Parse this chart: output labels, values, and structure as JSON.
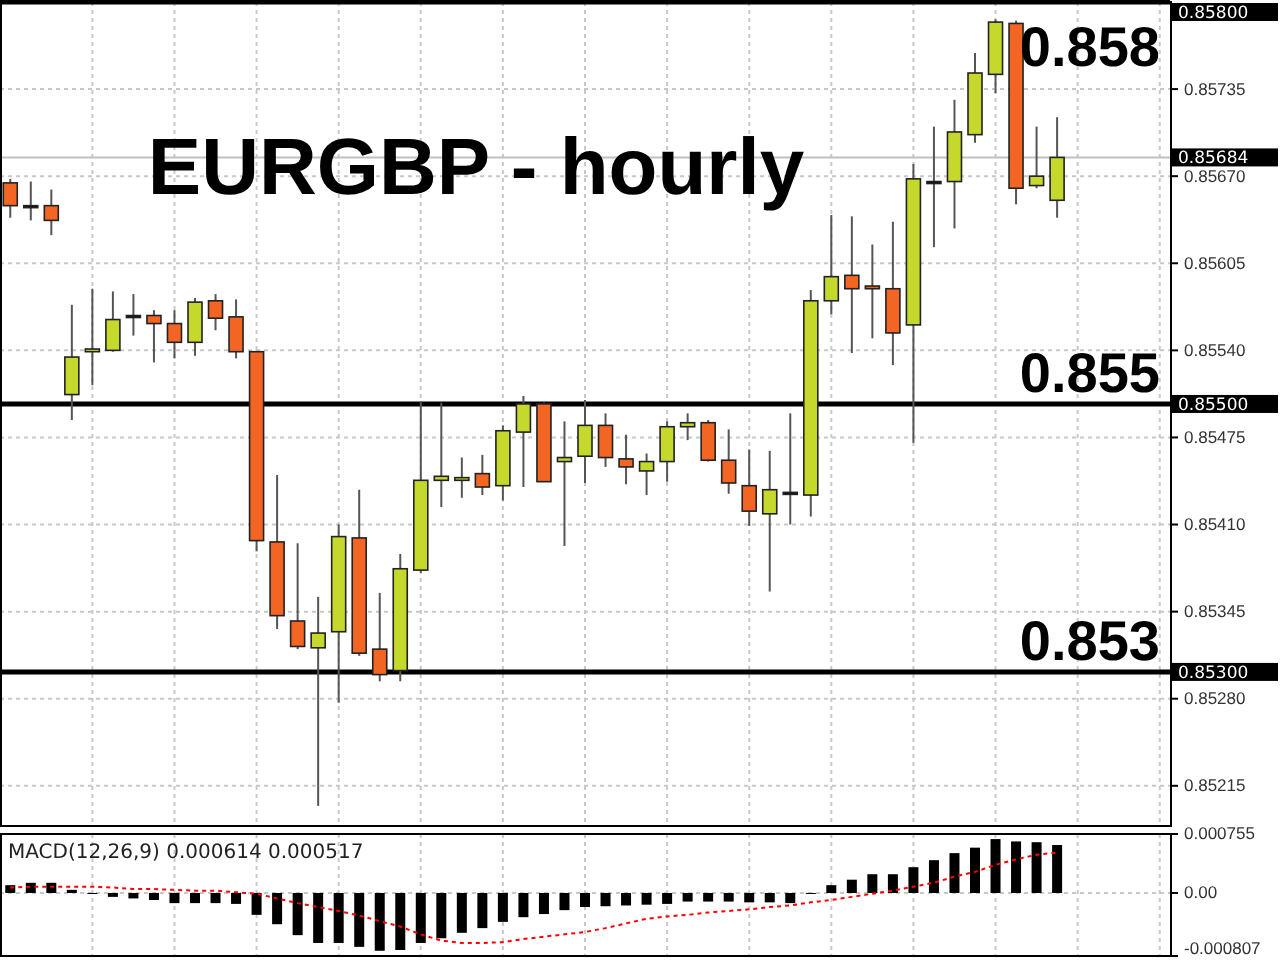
{
  "chart_data": [
    {
      "type": "candlestick",
      "title": "EURGBP - hourly",
      "categories": [
        null,
        null,
        null,
        null,
        null,
        null,
        null,
        null,
        null,
        null,
        null,
        null,
        null,
        null,
        null,
        null,
        null,
        null,
        null,
        null,
        null,
        null,
        null,
        null,
        null,
        null,
        null,
        null,
        null,
        null,
        null,
        null,
        null,
        null,
        null,
        null,
        null,
        null,
        null,
        null,
        null,
        null,
        null,
        null,
        null,
        null,
        null,
        null,
        null,
        null,
        null,
        null,
        null,
        null,
        null,
        null,
        null
      ],
      "ohlc": [
        [
          0.85665,
          0.85668,
          0.85639,
          0.85648
        ],
        [
          0.85648,
          0.85666,
          0.85637,
          0.85648
        ],
        [
          0.85648,
          0.8566,
          0.85626,
          0.85637
        ],
        [
          0.85507,
          0.85574,
          0.85488,
          0.85535
        ],
        [
          0.85539,
          0.85586,
          0.85514,
          0.85541
        ],
        [
          0.8554,
          0.85584,
          0.85539,
          0.85563
        ],
        [
          0.85566,
          0.85582,
          0.85551,
          0.85566
        ],
        [
          0.85566,
          0.8557,
          0.85531,
          0.8556
        ],
        [
          0.8556,
          0.8557,
          0.85534,
          0.85546
        ],
        [
          0.85546,
          0.85579,
          0.85536,
          0.85576
        ],
        [
          0.85577,
          0.85582,
          0.85555,
          0.85564
        ],
        [
          0.85565,
          0.85578,
          0.85534,
          0.85539
        ],
        [
          0.85539,
          0.85539,
          0.8539,
          0.85398
        ],
        [
          0.85397,
          0.85447,
          0.85332,
          0.85342
        ],
        [
          0.85338,
          0.85396,
          0.85317,
          0.85319
        ],
        [
          0.85318,
          0.85356,
          0.852,
          0.85329
        ],
        [
          0.8533,
          0.8541,
          0.85277,
          0.85401
        ],
        [
          0.854,
          0.85436,
          0.85312,
          0.85314
        ],
        [
          0.85317,
          0.85359,
          0.85293,
          0.85298
        ],
        [
          0.85301,
          0.85388,
          0.85293,
          0.85377
        ],
        [
          0.85376,
          0.85502,
          0.85374,
          0.85443
        ],
        [
          0.85443,
          0.85501,
          0.85423,
          0.85446
        ],
        [
          0.85443,
          0.8546,
          0.8543,
          0.85445
        ],
        [
          0.85448,
          0.85462,
          0.85432,
          0.85438
        ],
        [
          0.85439,
          0.85484,
          0.85428,
          0.8548
        ],
        [
          0.85479,
          0.85506,
          0.85438,
          0.855
        ],
        [
          0.855,
          0.85501,
          0.85442,
          0.85442
        ],
        [
          0.85457,
          0.85487,
          0.85394,
          0.8546
        ],
        [
          0.85461,
          0.85503,
          0.85441,
          0.85484
        ],
        [
          0.85484,
          0.85493,
          0.85453,
          0.8546
        ],
        [
          0.85459,
          0.85477,
          0.8544,
          0.85453
        ],
        [
          0.8545,
          0.85463,
          0.85432,
          0.85457
        ],
        [
          0.85457,
          0.85487,
          0.85442,
          0.85483
        ],
        [
          0.85483,
          0.85493,
          0.85473,
          0.85486
        ],
        [
          0.85486,
          0.85488,
          0.85457,
          0.85458
        ],
        [
          0.85458,
          0.85481,
          0.85433,
          0.85441
        ],
        [
          0.85439,
          0.85466,
          0.85409,
          0.8542
        ],
        [
          0.85418,
          0.85465,
          0.8536,
          0.85436
        ],
        [
          0.85434,
          0.85493,
          0.8541,
          0.85434
        ],
        [
          0.85432,
          0.85585,
          0.85416,
          0.85577
        ],
        [
          0.85577,
          0.85641,
          0.85567,
          0.85595
        ],
        [
          0.85596,
          0.8564,
          0.85538,
          0.85586
        ],
        [
          0.85588,
          0.85619,
          0.85549,
          0.85586
        ],
        [
          0.85586,
          0.85636,
          0.85529,
          0.85553
        ],
        [
          0.85559,
          0.85679,
          0.85471,
          0.85668
        ],
        [
          0.85666,
          0.85707,
          0.85617,
          0.85666
        ],
        [
          0.85666,
          0.85727,
          0.85631,
          0.85703
        ],
        [
          0.85701,
          0.85762,
          0.85695,
          0.85747
        ],
        [
          0.85746,
          0.85787,
          0.85732,
          0.85785
        ],
        [
          0.85784,
          0.85786,
          0.85649,
          0.85661
        ],
        [
          0.85663,
          0.85707,
          0.85661,
          0.8567
        ],
        [
          0.85652,
          0.85714,
          0.85639,
          0.85684
        ],
        null,
        null,
        null,
        null,
        null
      ],
      "colors": [
        "#f26522",
        "#000000",
        "#f26522",
        "#c5d92d",
        "#c5d92d",
        "#c5d92d",
        "#000000",
        "#f26522",
        "#f26522",
        "#c5d92d",
        "#f26522",
        "#f26522",
        "#f26522",
        "#f26522",
        "#f26522",
        "#c5d92d",
        "#c5d92d",
        "#f26522",
        "#f26522",
        "#c5d92d",
        "#c5d92d",
        "#c5d92d",
        "#c5d92d",
        "#f26522",
        "#c5d92d",
        "#c5d92d",
        "#f26522",
        "#c5d92d",
        "#c5d92d",
        "#f26522",
        "#f26522",
        "#c5d92d",
        "#c5d92d",
        "#c5d92d",
        "#f26522",
        "#f26522",
        "#f26522",
        "#c5d92d",
        "#000000",
        "#c5d92d",
        "#c5d92d",
        "#f26522",
        "#f26522",
        "#f26522",
        "#c5d92d",
        "#000000",
        "#c5d92d",
        "#c5d92d",
        "#c5d92d",
        "#f26522",
        "#c5d92d",
        "#c5d92d",
        null,
        null,
        null,
        null,
        null
      ],
      "ylim": [
        0.85185,
        0.858
      ],
      "yticks": [
        {
          "value": 0.85735,
          "label": "0.85735"
        },
        {
          "value": 0.8567,
          "label": "0.85670"
        },
        {
          "value": 0.85605,
          "label": "0.85605"
        },
        {
          "value": 0.8554,
          "label": "0.85540"
        },
        {
          "value": 0.85475,
          "label": "0.85475"
        },
        {
          "value": 0.8541,
          "label": "0.85410"
        },
        {
          "value": 0.85345,
          "label": "0.85345"
        },
        {
          "value": 0.8528,
          "label": "0.85280"
        },
        {
          "value": 0.85215,
          "label": "0.85215"
        }
      ],
      "ref_lines": [
        {
          "axis": "y",
          "value": 0.858,
          "label": "0.85800",
          "color": "#000000"
        },
        {
          "axis": "y",
          "value": 0.85684,
          "label": "0.85684",
          "color": "#c0c0c0"
        },
        {
          "axis": "y",
          "value": 0.855,
          "label": "0.85500",
          "color": "#000000"
        },
        {
          "axis": "y",
          "value": 0.853,
          "label": "0.85300",
          "color": "#000000"
        }
      ],
      "annotations": [
        {
          "text": "0.858",
          "y": 0.858
        },
        {
          "text": "0.855",
          "y": 0.855
        },
        {
          "text": "0.853",
          "y": 0.853
        }
      ],
      "grid": true
    },
    {
      "type": "bar",
      "title": "MACD(12,26,9) 0.000614 0.000517",
      "categories": [
        null,
        null,
        null,
        null,
        null,
        null,
        null,
        null,
        null,
        null,
        null,
        null,
        null,
        null,
        null,
        null,
        null,
        null,
        null,
        null,
        null,
        null,
        null,
        null,
        null,
        null,
        null,
        null,
        null,
        null,
        null,
        null,
        null,
        null,
        null,
        null,
        null,
        null,
        null,
        null,
        null,
        null,
        null,
        null,
        null,
        null,
        null,
        null,
        null,
        null,
        null,
        null,
        null,
        null,
        null,
        null,
        null
      ],
      "series": [
        {
          "type": "bar",
          "color": "#000000",
          "values": [
            0.0001,
            0.00013,
            0.00013,
            4e-05,
            -1e-05,
            -5e-05,
            -7e-05,
            -9e-05,
            -0.00013,
            -0.00013,
            -0.00013,
            -0.00014,
            -0.00028,
            -0.0004,
            -0.00054,
            -0.00064,
            -0.00064,
            -0.00069,
            -0.00074,
            -0.00073,
            -0.00064,
            -0.00058,
            -0.00051,
            -0.00045,
            -0.00037,
            -0.00031,
            -0.00027,
            -0.00022,
            -0.00018,
            -0.00017,
            -0.00016,
            -0.00015,
            -0.00014,
            -0.00011,
            -0.00011,
            -0.00011,
            -0.00012,
            -0.00012,
            -0.00013,
            -1e-05,
            0.0001,
            0.00017,
            0.00024,
            0.00024,
            0.00033,
            0.00042,
            0.00051,
            0.00058,
            0.00069,
            0.00066,
            0.00065,
            0.000614,
            null,
            null,
            null,
            null,
            null
          ]
        },
        {
          "type": "line",
          "color": "#ff0000",
          "line_style": "dotted",
          "values": [
            7e-05,
            8e-05,
            8e-05,
            8e-05,
            8e-05,
            7e-05,
            5e-05,
            5e-05,
            4e-05,
            3e-05,
            3e-05,
            1e-05,
            -1e-05,
            -7e-05,
            -0.00013,
            -0.00018,
            -0.00023,
            -0.00029,
            -0.00036,
            -0.00043,
            -0.00053,
            -0.00061,
            -0.00064,
            -0.00064,
            -0.00063,
            -0.00059,
            -0.00056,
            -0.00053,
            -0.0005,
            -0.00045,
            -0.00039,
            -0.00033,
            -0.0003,
            -0.00028,
            -0.00025,
            -0.00023,
            -0.00021,
            -0.00018,
            -0.00016,
            -0.00012,
            -9e-05,
            -5e-05,
            -1e-05,
            3e-05,
            8e-05,
            0.00013,
            0.00021,
            0.00027,
            0.00036,
            0.00043,
            0.00049,
            0.000517,
            null,
            null,
            null,
            null,
            null
          ]
        }
      ],
      "ylim": [
        -0.000807,
        0.000755
      ],
      "yticks": [
        0.000755,
        {
          "value": 0,
          "label": "0.00"
        },
        -0.000807
      ],
      "grid": true
    }
  ]
}
